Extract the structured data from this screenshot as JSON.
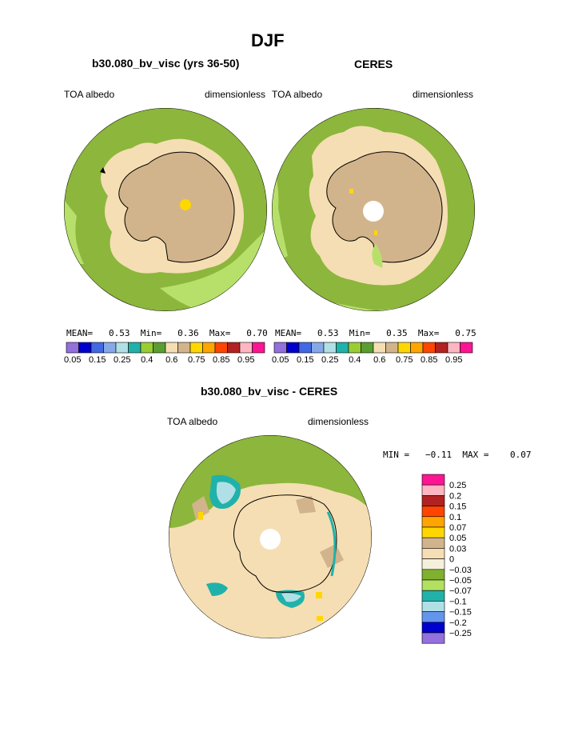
{
  "title": "DJF",
  "panel_left": {
    "title": "b30.080_bv_visc (yrs 36-50)",
    "left_label": "TOA albedo",
    "right_label": "dimensionless",
    "stats": {
      "mean_label": "MEAN=",
      "mean": "0.53",
      "min_label": "Min=",
      "min": "0.36",
      "max_label": "Max=",
      "max": "0.70"
    }
  },
  "panel_right": {
    "title": "CERES",
    "left_label": "TOA albedo",
    "right_label": "dimensionless",
    "stats": {
      "mean_label": "MEAN=",
      "mean": "0.53",
      "min_label": "Min=",
      "min": "0.35",
      "max_label": "Max=",
      "max": "0.75"
    }
  },
  "panel_diff": {
    "title": "b30.080_bv_visc - CERES",
    "left_label": "TOA albedo",
    "right_label": "dimensionless",
    "stats": {
      "min_label": "MIN =",
      "min": "−0.11",
      "max_label": "MAX =",
      "max": "0.07"
    }
  },
  "colorbar_top": {
    "colors": [
      "#9370db",
      "#0000cd",
      "#4169e1",
      "#87a8e8",
      "#b0e0e6",
      "#20b2aa",
      "#9acd32",
      "#5a9e32",
      "#f5deb3",
      "#d2b48c",
      "#ffd700",
      "#ffa500",
      "#ff4500",
      "#b22222",
      "#ffb6c1",
      "#ff1493"
    ],
    "labels": [
      "0.05",
      "0.15",
      "0.25",
      "0.4",
      "0.6",
      "0.75",
      "0.85",
      "0.95"
    ]
  },
  "colorbar_diff": {
    "colors": [
      "#ff1493",
      "#ffb6c1",
      "#b22222",
      "#ff4500",
      "#ffa500",
      "#ffd700",
      "#d2b48c",
      "#f5deb3",
      "#f5f0dc",
      "#7fb030",
      "#b2e060",
      "#20b2aa",
      "#b0e0e6",
      "#6495ed",
      "#0000cd",
      "#9370db"
    ],
    "labels": [
      "0.25",
      "0.2",
      "0.15",
      "0.1",
      "0.07",
      "0.05",
      "0.03",
      "0",
      "−0.03",
      "−0.05",
      "−0.07",
      "−0.1",
      "−0.15",
      "−0.2",
      "−0.25"
    ]
  },
  "map_colors": {
    "ocean_green": "#8db63c",
    "light_green": "#b7e06a",
    "wheat": "#f5deb3",
    "tan": "#d2b48c",
    "gold": "#ffd700",
    "teal": "#20b2aa",
    "lightblue": "#b0e0e6",
    "coast": "#000000"
  }
}
